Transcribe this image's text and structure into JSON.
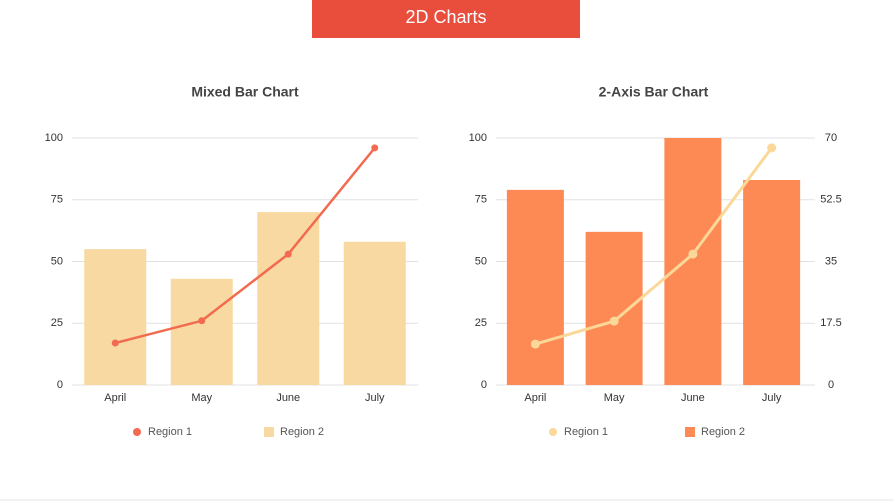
{
  "header": {
    "title": "2D Charts"
  },
  "chart_data": [
    {
      "type": "bar",
      "title": "Mixed Bar Chart",
      "categories": [
        "April",
        "May",
        "June",
        "July"
      ],
      "series": [
        {
          "name": "Region 1",
          "type": "line",
          "color": "#f26b4f",
          "values": [
            17,
            26,
            53,
            96
          ]
        },
        {
          "name": "Region 2",
          "type": "bar",
          "color": "#f8d9a2",
          "values": [
            55,
            43,
            70,
            58
          ]
        }
      ],
      "ylim": [
        0,
        100
      ],
      "yticks": [
        0,
        25,
        50,
        75,
        100
      ],
      "grid": true
    },
    {
      "type": "bar",
      "title": "2-Axis Bar Chart",
      "categories": [
        "April",
        "May",
        "June",
        "July"
      ],
      "series": [
        {
          "name": "Region 1",
          "type": "line",
          "color": "#fbd898",
          "axis": "y2",
          "values": [
            11.6,
            18.1,
            37.1,
            67.2
          ]
        },
        {
          "name": "Region 2",
          "type": "bar",
          "color": "#fd8a55",
          "values": [
            79,
            62,
            100,
            83
          ]
        }
      ],
      "ylim": [
        0,
        100
      ],
      "yticks": [
        0,
        25,
        50,
        75,
        100
      ],
      "y2lim": [
        0,
        70
      ],
      "y2ticks": [
        0,
        17.5,
        35,
        52.5,
        70
      ],
      "grid": true
    }
  ]
}
